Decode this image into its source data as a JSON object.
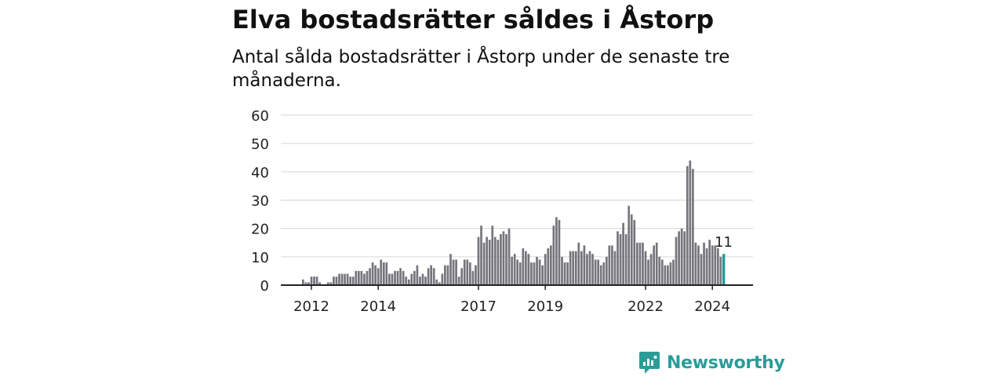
{
  "title": "Elva bostadsrätter såldes i Åstorp",
  "subtitle": "Antal sålda bostadsrätter i Åstorp under de senaste tre månaderna.",
  "brand": {
    "name": "Newsworthy",
    "color": "#2a9d99",
    "icon": "bar-chart-speech-bubble-icon"
  },
  "chart_data": {
    "type": "bar",
    "title": "Elva bostadsrätter såldes i Åstorp",
    "xlabel": "",
    "ylabel": "",
    "ylim": [
      0,
      60
    ],
    "yticks": [
      0,
      10,
      20,
      30,
      40,
      50,
      60
    ],
    "xtick_labels": [
      {
        "label": "2012",
        "index": 3
      },
      {
        "label": "2014",
        "index": 27
      },
      {
        "label": "2017",
        "index": 63
      },
      {
        "label": "2019",
        "index": 87
      },
      {
        "label": "2022",
        "index": 123
      },
      {
        "label": "2024",
        "index": 147
      }
    ],
    "colors": {
      "bar": "#76757c",
      "highlight": "#1a9b97",
      "grid": "#d6d6d6"
    },
    "grid": true,
    "highlight_label": "11",
    "values": [
      2,
      1,
      1,
      3,
      3,
      3,
      1,
      0,
      0,
      1,
      1,
      3,
      3,
      4,
      4,
      4,
      4,
      3,
      3,
      5,
      5,
      5,
      4,
      5,
      6,
      8,
      7,
      6,
      9,
      8,
      8,
      4,
      4,
      5,
      5,
      6,
      5,
      3,
      2,
      4,
      5,
      7,
      3,
      4,
      3,
      6,
      7,
      6,
      2,
      1,
      4,
      7,
      7,
      11,
      9,
      9,
      3,
      6,
      9,
      9,
      8,
      5,
      7,
      17,
      21,
      15,
      17,
      16,
      21,
      17,
      16,
      18,
      19,
      18,
      20,
      10,
      11,
      9,
      8,
      13,
      12,
      11,
      8,
      8,
      10,
      9,
      7,
      11,
      13,
      14,
      21,
      24,
      23,
      10,
      8,
      8,
      12,
      12,
      12,
      15,
      12,
      14,
      11,
      12,
      11,
      9,
      9,
      7,
      8,
      10,
      14,
      14,
      12,
      19,
      18,
      22,
      18,
      28,
      25,
      23,
      15,
      15,
      15,
      12,
      9,
      11,
      14,
      15,
      10,
      9,
      7,
      7,
      8,
      9,
      17,
      19,
      20,
      19,
      42,
      44,
      41,
      15,
      14,
      11,
      15,
      13,
      16,
      14,
      14,
      13,
      10,
      11
    ]
  }
}
